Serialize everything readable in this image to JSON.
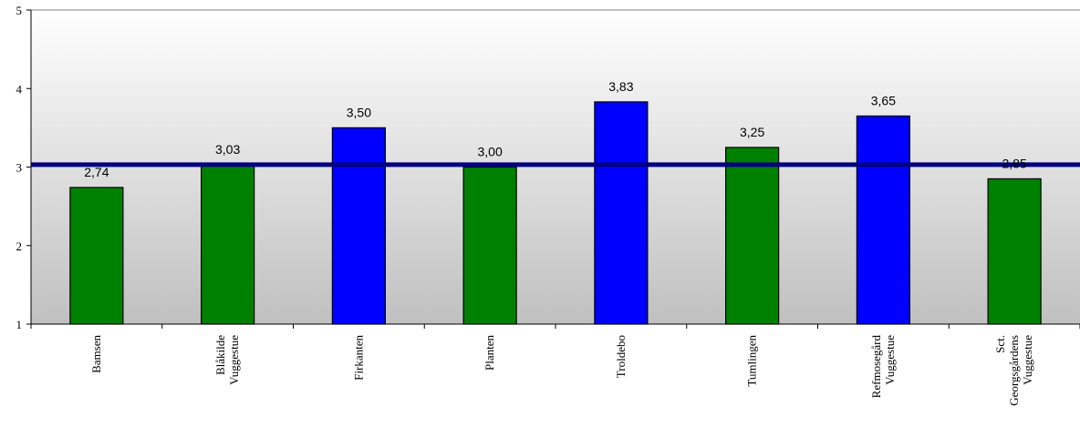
{
  "chart_data": {
    "type": "bar",
    "categories": [
      [
        "Bamsen"
      ],
      [
        "Blåkilde",
        "Vuggestue"
      ],
      [
        "Firkanten"
      ],
      [
        "Planten"
      ],
      [
        "Troldebo"
      ],
      [
        "Tumlingen"
      ],
      [
        "Refmosegård",
        "Vuggestue"
      ],
      [
        "Sct.",
        "Georgsgårdens",
        "Vuggestue"
      ]
    ],
    "values": [
      2.74,
      3.03,
      3.5,
      3.0,
      3.83,
      3.25,
      3.65,
      2.85
    ],
    "value_labels": [
      "2,74",
      "3,03",
      "3,50",
      "3,00",
      "3,83",
      "3,25",
      "3,65",
      "2,85"
    ],
    "bar_colors": [
      "#008000",
      "#008000",
      "#0000ff",
      "#008000",
      "#0000ff",
      "#008000",
      "#0000ff",
      "#008000"
    ],
    "reference_line": {
      "value": 3.03,
      "color": "#000080"
    },
    "ylim": [
      1,
      5
    ],
    "yticks": [
      "1",
      "2",
      "3",
      "4",
      "5"
    ],
    "title": "",
    "xlabel": "",
    "ylabel": "",
    "grid": false,
    "background_gradient": [
      "#ffffff",
      "#c0c0c0"
    ]
  }
}
